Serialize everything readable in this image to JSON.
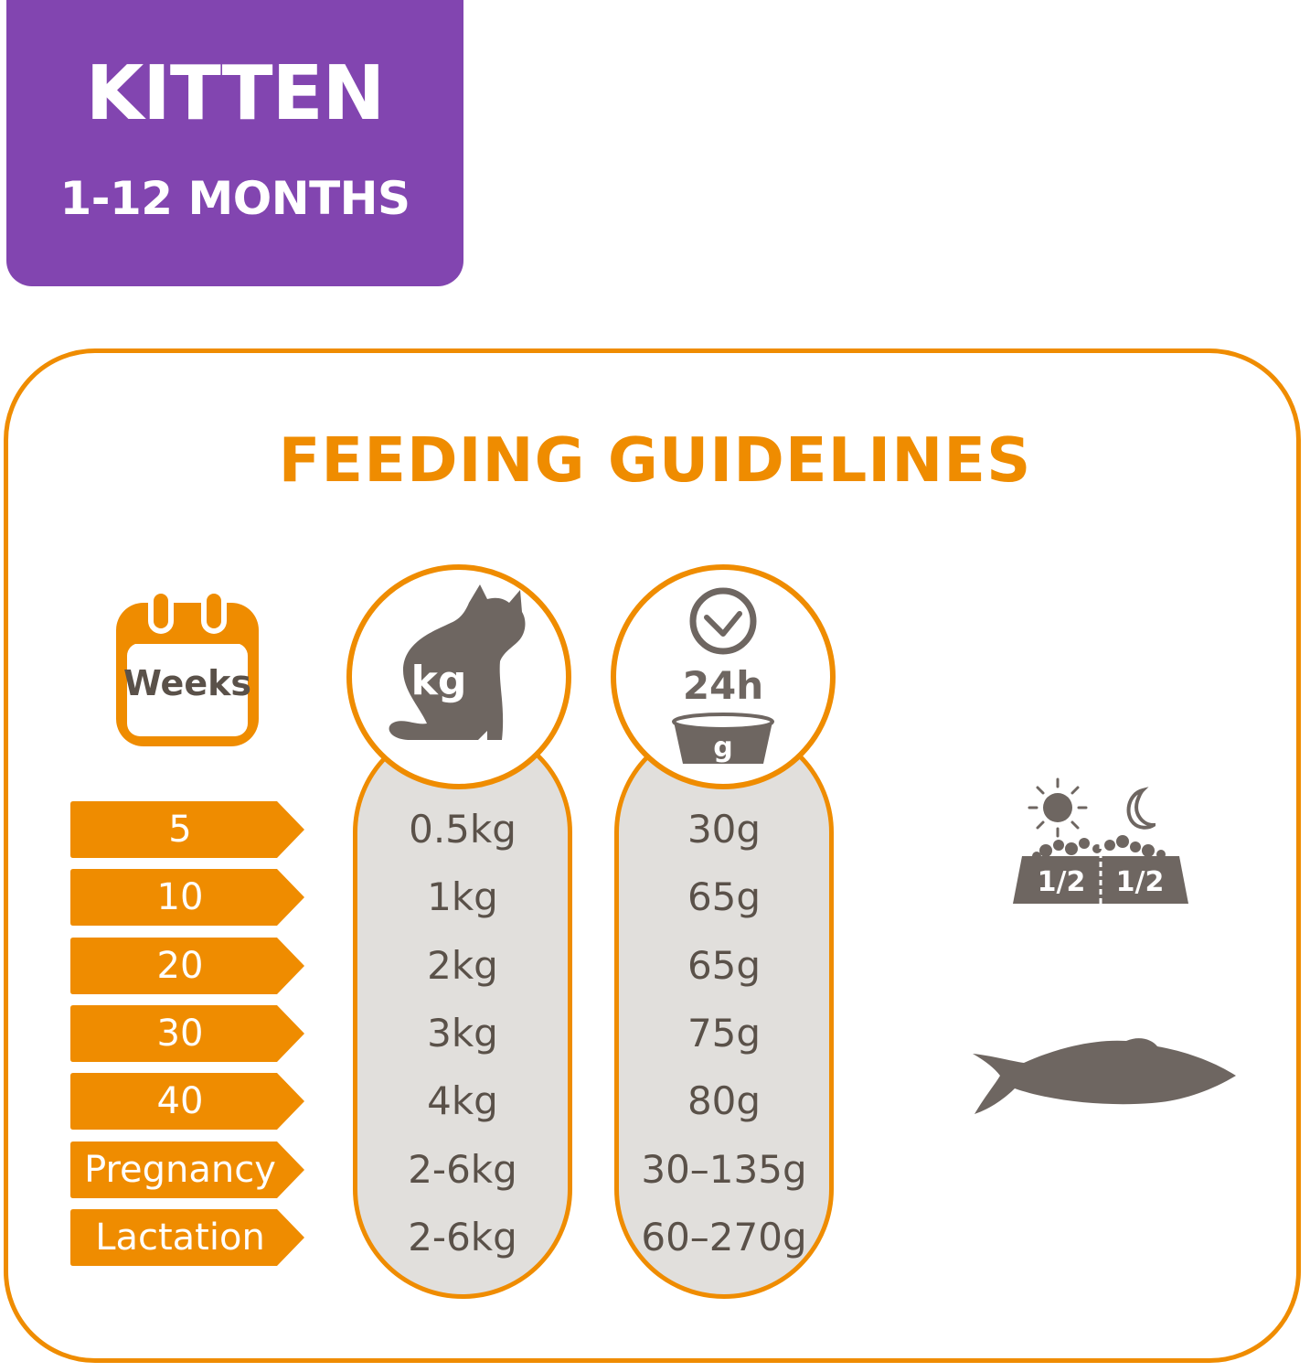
{
  "badge": {
    "title": "KITTEN",
    "subtitle": "1-12 MONTHS"
  },
  "panel_title": "FEEDING GUIDELINES",
  "headers": {
    "weeks": {
      "label": "Weeks",
      "icon": "calendar-icon"
    },
    "weight": {
      "label": "kg",
      "icon": "cat-silhouette-icon"
    },
    "daily": {
      "label": "24h",
      "sublabel": "g",
      "icon": "clock-bowl-icon"
    }
  },
  "rows": [
    {
      "age": "5",
      "weight": "0.5kg",
      "amount": "30g"
    },
    {
      "age": "10",
      "weight": "1kg",
      "amount": "65g"
    },
    {
      "age": "20",
      "weight": "2kg",
      "amount": "65g"
    },
    {
      "age": "30",
      "weight": "3kg",
      "amount": "75g"
    },
    {
      "age": "40",
      "weight": "4kg",
      "amount": "80g"
    },
    {
      "age": "Pregnancy",
      "weight": "2-6kg",
      "amount": "30–135g"
    },
    {
      "age": "Lactation",
      "weight": "2-6kg",
      "amount": "60–270g"
    }
  ],
  "split_bowl": {
    "left": "1/2",
    "right": "1/2",
    "icons": [
      "sun-icon",
      "moon-icon",
      "bowl-icon"
    ]
  },
  "fish_icon": "fish-icon",
  "colors": {
    "purple": "#8245b0",
    "orange": "#ef8c00",
    "grey_text": "#5a5149",
    "pill_fill": "#e1dfdc",
    "icon_grey": "#6e6661"
  }
}
